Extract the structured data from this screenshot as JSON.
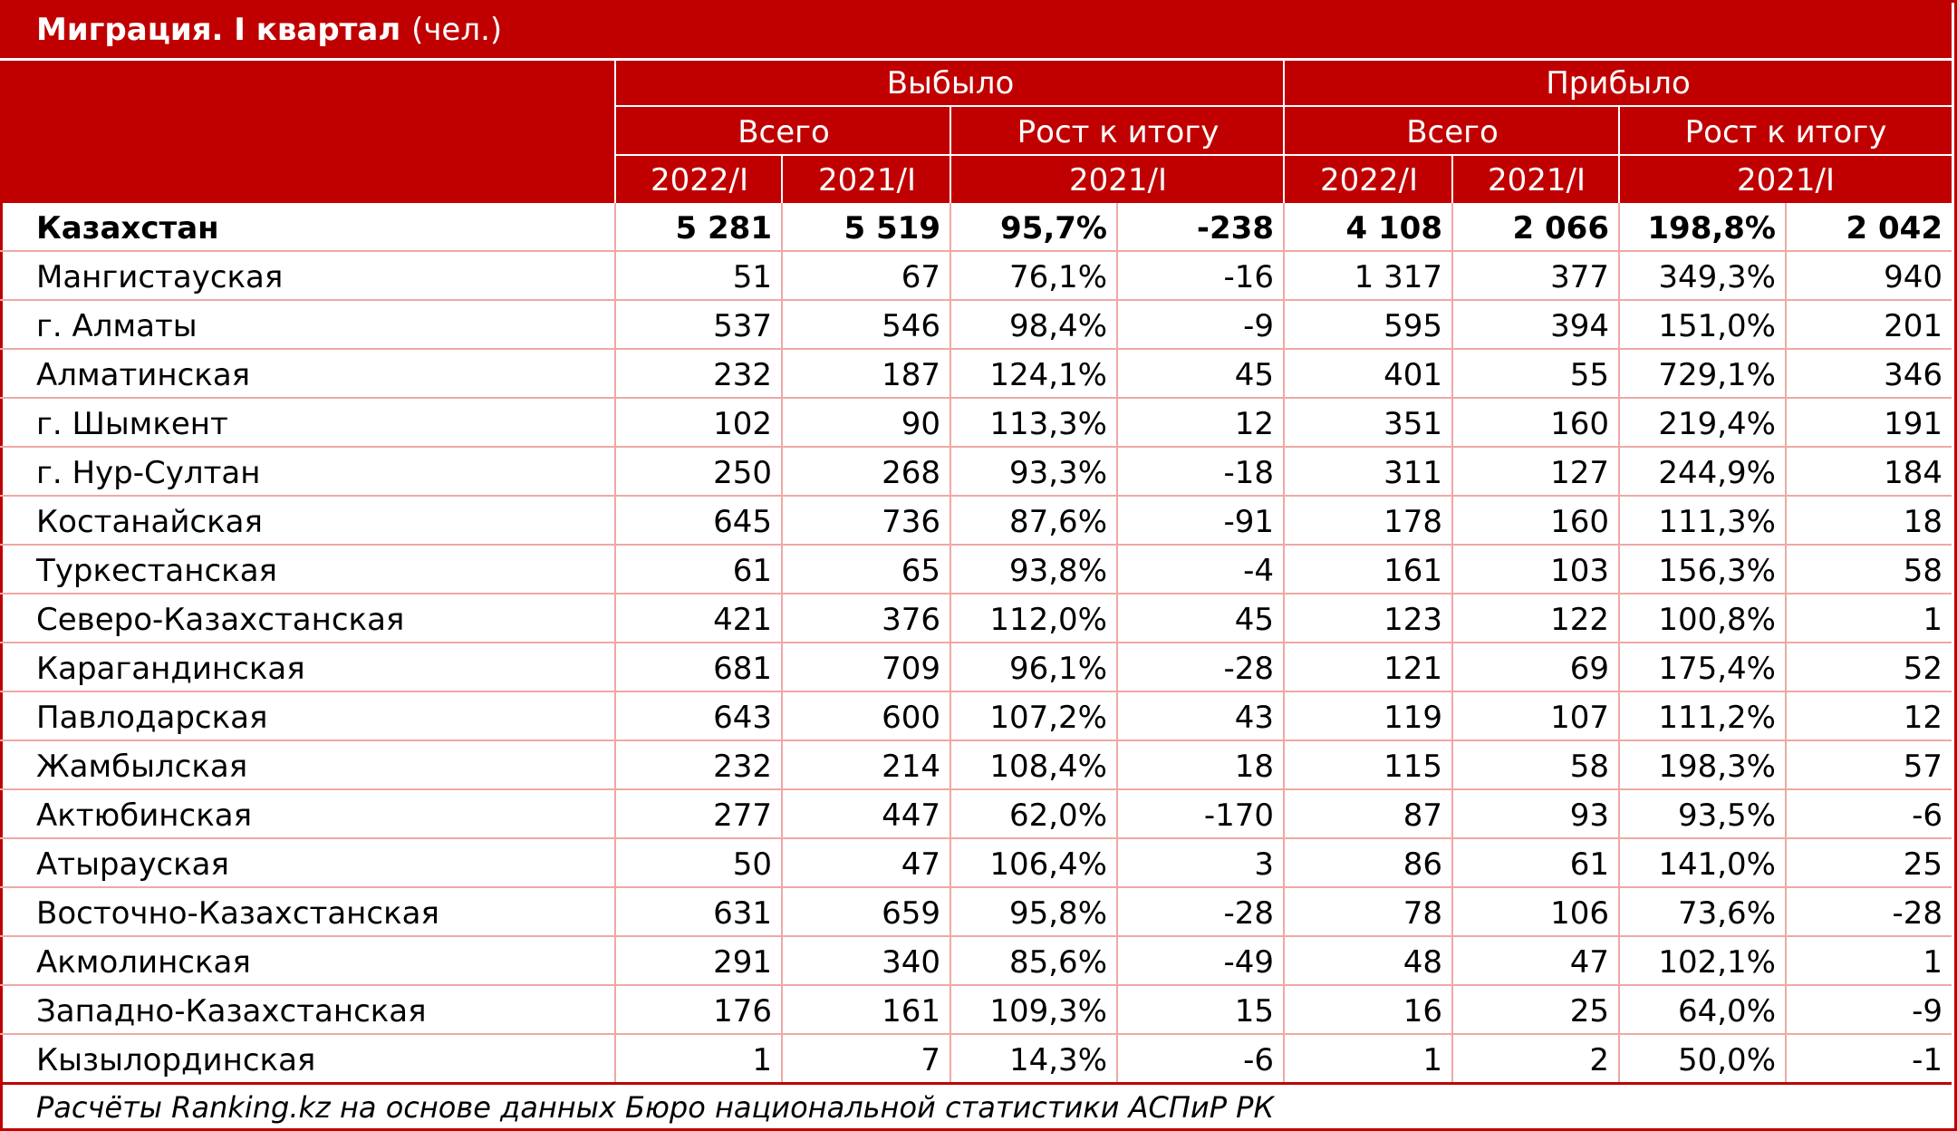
{
  "title": "Миграция. I квартал",
  "unit": "(чел.)",
  "chart_data": {
    "type": "table",
    "groups": [
      "Выбыло",
      "Прибыло"
    ],
    "subgroups": [
      "Всего",
      "Рост к итогу",
      "Всего",
      "Рост к итогу"
    ],
    "periods": [
      "2022/I",
      "2021/I",
      "2021/I",
      "2022/I",
      "2021/I",
      "2021/I"
    ],
    "columns": [
      "Выбыло 2022/I",
      "Выбыло 2021/I",
      "Выбыло рост %",
      "Выбыло рост абс.",
      "Прибыло 2022/I",
      "Прибыло 2021/I",
      "Прибыло рост %",
      "Прибыло рост абс."
    ],
    "rows": [
      {
        "name": "Казахстан",
        "cells": [
          "5 281",
          "5 519",
          "95,7%",
          "-238",
          "4 108",
          "2 066",
          "198,8%",
          "2 042"
        ]
      },
      {
        "name": "Мангистауская",
        "cells": [
          "51",
          "67",
          "76,1%",
          "-16",
          "1 317",
          "377",
          "349,3%",
          "940"
        ]
      },
      {
        "name": "г. Алматы",
        "cells": [
          "537",
          "546",
          "98,4%",
          "-9",
          "595",
          "394",
          "151,0%",
          "201"
        ]
      },
      {
        "name": "Алматинская",
        "cells": [
          "232",
          "187",
          "124,1%",
          "45",
          "401",
          "55",
          "729,1%",
          "346"
        ]
      },
      {
        "name": "г. Шымкент",
        "cells": [
          "102",
          "90",
          "113,3%",
          "12",
          "351",
          "160",
          "219,4%",
          "191"
        ]
      },
      {
        "name": "г. Нур-Султан",
        "cells": [
          "250",
          "268",
          "93,3%",
          "-18",
          "311",
          "127",
          "244,9%",
          "184"
        ]
      },
      {
        "name": "Костанайская",
        "cells": [
          "645",
          "736",
          "87,6%",
          "-91",
          "178",
          "160",
          "111,3%",
          "18"
        ]
      },
      {
        "name": "Туркестанская",
        "cells": [
          "61",
          "65",
          "93,8%",
          "-4",
          "161",
          "103",
          "156,3%",
          "58"
        ]
      },
      {
        "name": "Северо-Казахстанская",
        "cells": [
          "421",
          "376",
          "112,0%",
          "45",
          "123",
          "122",
          "100,8%",
          "1"
        ]
      },
      {
        "name": "Карагандинская",
        "cells": [
          "681",
          "709",
          "96,1%",
          "-28",
          "121",
          "69",
          "175,4%",
          "52"
        ]
      },
      {
        "name": "Павлодарская",
        "cells": [
          "643",
          "600",
          "107,2%",
          "43",
          "119",
          "107",
          "111,2%",
          "12"
        ]
      },
      {
        "name": "Жамбылская",
        "cells": [
          "232",
          "214",
          "108,4%",
          "18",
          "115",
          "58",
          "198,3%",
          "57"
        ]
      },
      {
        "name": "Актюбинская",
        "cells": [
          "277",
          "447",
          "62,0%",
          "-170",
          "87",
          "93",
          "93,5%",
          "-6"
        ]
      },
      {
        "name": "Атырауская",
        "cells": [
          "50",
          "47",
          "106,4%",
          "3",
          "86",
          "61",
          "141,0%",
          "25"
        ]
      },
      {
        "name": "Восточно-Казахстанская",
        "cells": [
          "631",
          "659",
          "95,8%",
          "-28",
          "78",
          "106",
          "73,6%",
          "-28"
        ]
      },
      {
        "name": "Акмолинская",
        "cells": [
          "291",
          "340",
          "85,6%",
          "-49",
          "48",
          "47",
          "102,1%",
          "1"
        ]
      },
      {
        "name": "Западно-Казахстанская",
        "cells": [
          "176",
          "161",
          "109,3%",
          "15",
          "16",
          "25",
          "64,0%",
          "-9"
        ]
      },
      {
        "name": "Кызылординская",
        "cells": [
          "1",
          "7",
          "14,3%",
          "-6",
          "1",
          "2",
          "50,0%",
          "-1"
        ]
      }
    ]
  },
  "footer": "Расчёты Ranking.kz на основе данных Бюро национальной статистики АСПиР РК",
  "colors": {
    "accent": "#c00000",
    "grid": "#f0a8a4",
    "header_text": "#ffffff"
  }
}
